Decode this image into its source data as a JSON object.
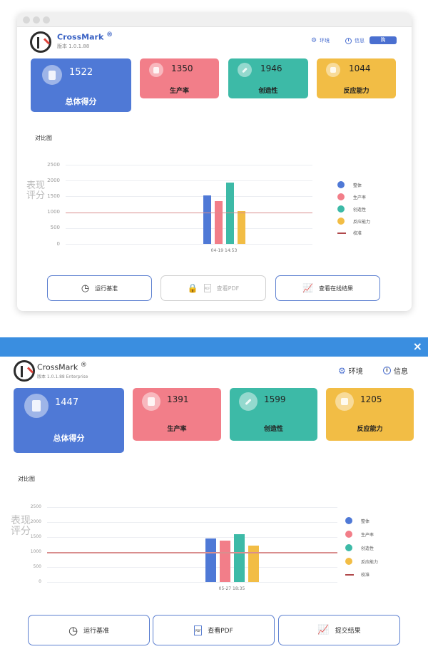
{
  "colors": {
    "blue": "#4f79d6",
    "pink": "#f27e89",
    "teal": "#3dbaa7",
    "yellow": "#f2bd45",
    "baseline": "#b0484b",
    "accent": "#3a62c4",
    "titlebar": "#3a8ee0"
  },
  "windows": [
    {
      "brand": {
        "name": "CrossMark",
        "mark": "®",
        "version": "版本 1.0.1.88"
      },
      "header": {
        "env_label": "环境",
        "info_label": "信息",
        "extra_button": "购"
      },
      "cards": [
        {
          "score": "1522",
          "label": "总体得分",
          "icon": "clipboard-icon"
        },
        {
          "score": "1350",
          "label": "生产率",
          "icon": "document-icon"
        },
        {
          "score": "1946",
          "label": "创造性",
          "icon": "pencil-icon"
        },
        {
          "score": "1044",
          "label": "反应能力",
          "icon": "target-icon"
        }
      ],
      "section_title": "对比图",
      "chart_data": {
        "type": "bar",
        "title": "",
        "ylabel": "表现评分",
        "ylim": [
          0,
          2500
        ],
        "yticks": [
          "2500",
          "2000",
          "1500",
          "1000",
          "500",
          "0"
        ],
        "categories": [
          "04-19 14:53"
        ],
        "series": [
          {
            "name": "整体",
            "values": [
              1522
            ],
            "color": "#4f79d6"
          },
          {
            "name": "生产率",
            "values": [
              1350
            ],
            "color": "#f27e89"
          },
          {
            "name": "创造性",
            "values": [
              1946
            ],
            "color": "#3dbaa7"
          },
          {
            "name": "反应能力",
            "values": [
              1044
            ],
            "color": "#f2bd45"
          }
        ],
        "baseline": {
          "name": "校准",
          "value": 1000
        },
        "legend": "right"
      },
      "actions": [
        {
          "label": "运行基准",
          "icon": "clock-icon",
          "enabled": true
        },
        {
          "label": "查看PDF",
          "icon": "pdf-icon",
          "enabled": false
        },
        {
          "label": "查看在线结果",
          "icon": "chart-icon",
          "enabled": true
        }
      ]
    },
    {
      "brand": {
        "name": "CrossMark",
        "mark": "®",
        "version": "版本 1.0.1.88 Enterprise"
      },
      "header": {
        "env_label": "环境",
        "info_label": "信息",
        "close": "×"
      },
      "cards": [
        {
          "score": "1447",
          "label": "总体得分",
          "icon": "clipboard-icon"
        },
        {
          "score": "1391",
          "label": "生产率",
          "icon": "document-icon"
        },
        {
          "score": "1599",
          "label": "创造性",
          "icon": "pencil-icon"
        },
        {
          "score": "1205",
          "label": "反应能力",
          "icon": "target-icon"
        }
      ],
      "section_title": "对比图",
      "chart_data": {
        "type": "bar",
        "title": "",
        "ylabel": "表现评分",
        "ylim": [
          0,
          2500
        ],
        "yticks": [
          "2500",
          "2000",
          "1500",
          "1000",
          "500",
          "0"
        ],
        "categories": [
          "05-27 18:35"
        ],
        "series": [
          {
            "name": "整体",
            "values": [
              1447
            ],
            "color": "#4f79d6"
          },
          {
            "name": "生产率",
            "values": [
              1391
            ],
            "color": "#f27e89"
          },
          {
            "name": "创造性",
            "values": [
              1599
            ],
            "color": "#3dbaa7"
          },
          {
            "name": "反应能力",
            "values": [
              1205
            ],
            "color": "#f2bd45"
          }
        ],
        "baseline": {
          "name": "校准",
          "value": 1000
        },
        "legend": "right"
      },
      "actions": [
        {
          "label": "运行基准",
          "icon": "clock-icon",
          "enabled": true
        },
        {
          "label": "查看PDF",
          "icon": "pdf-icon",
          "enabled": true
        },
        {
          "label": "提交结果",
          "icon": "chart-icon",
          "enabled": true
        }
      ]
    }
  ]
}
